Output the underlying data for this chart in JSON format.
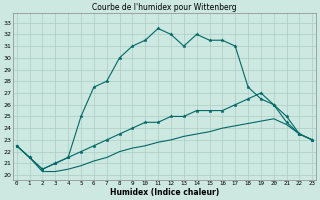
{
  "title": "Courbe de l'humidex pour Wittenberg",
  "xlabel": "Humidex (Indice chaleur)",
  "bg_color": "#cce8e0",
  "grid_color": "#aaccc4",
  "line_color": "#006868",
  "x_ticks": [
    0,
    1,
    2,
    3,
    4,
    5,
    6,
    7,
    8,
    9,
    10,
    11,
    12,
    13,
    14,
    15,
    16,
    17,
    18,
    19,
    20,
    21,
    22,
    23
  ],
  "y_ticks": [
    20,
    21,
    22,
    23,
    24,
    25,
    26,
    27,
    28,
    29,
    30,
    31,
    32,
    33
  ],
  "xlim": [
    -0.3,
    23.3
  ],
  "ylim": [
    19.6,
    33.8
  ],
  "series1_y": [
    22.5,
    21.5,
    20.5,
    21.0,
    21.5,
    25.0,
    27.5,
    28.0,
    30.0,
    31.0,
    31.5,
    32.5,
    32.0,
    31.0,
    32.0,
    31.5,
    31.5,
    31.0,
    27.5,
    26.5,
    26.0,
    24.5,
    23.5,
    23.0
  ],
  "series2_y": [
    22.5,
    21.5,
    20.5,
    21.0,
    21.5,
    22.0,
    22.5,
    23.0,
    23.5,
    24.0,
    24.5,
    24.5,
    25.0,
    25.0,
    25.5,
    25.5,
    25.5,
    26.0,
    26.5,
    27.0,
    26.0,
    25.0,
    23.5,
    23.0
  ],
  "series3_y": [
    22.5,
    21.5,
    20.3,
    20.3,
    20.5,
    20.8,
    21.2,
    21.5,
    22.0,
    22.3,
    22.5,
    22.8,
    23.0,
    23.3,
    23.5,
    23.7,
    24.0,
    24.2,
    24.4,
    24.6,
    24.8,
    24.3,
    23.5,
    23.0
  ]
}
